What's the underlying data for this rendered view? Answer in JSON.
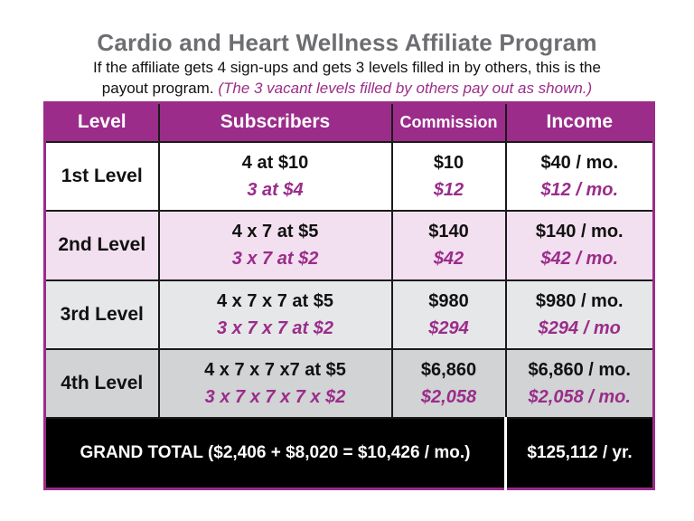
{
  "header": {
    "title": "Cardio and Heart Wellness Affiliate Program",
    "subtitle_line1": "If the affiliate gets 4 sign-ups and gets 3 levels filled in by others, this is the",
    "subtitle_line2": "payout program.",
    "subtitle_note": "(The 3 vacant levels filled by others pay out as shown.)"
  },
  "table": {
    "columns": [
      "Level",
      "Subscribers",
      "Commission",
      "Income"
    ],
    "rows": [
      {
        "level": "1st Level",
        "subscribers": "4 at $10",
        "subscribers_alt": "3 at $4",
        "commission": "$10",
        "commission_alt": "$12",
        "income": "$40 / mo.",
        "income_alt": "$12 / mo."
      },
      {
        "level": "2nd Level",
        "subscribers": "4 x 7 at $5",
        "subscribers_alt": "3 x 7 at $2",
        "commission": "$140",
        "commission_alt": "$42",
        "income": "$140 / mo.",
        "income_alt": "$42 / mo."
      },
      {
        "level": "3rd Level",
        "subscribers": "4 x 7 x 7 at $5",
        "subscribers_alt": "3 x 7 x 7 at $2",
        "commission": "$980",
        "commission_alt": "$294",
        "income": "$980 / mo.",
        "income_alt": "$294 / mo"
      },
      {
        "level": "4th Level",
        "subscribers": "4 x 7 x 7 x7 at $5",
        "subscribers_alt": "3 x 7 x 7 x 7 x $2",
        "commission": "$6,860",
        "commission_alt": "$2,058",
        "income": "$6,860 / mo.",
        "income_alt": "$2,058 / mo."
      }
    ],
    "grand_total": "GRAND TOTAL ($2,406 + $8,020 = $10,426 / mo.)",
    "yearly_total": "$125,112 / yr."
  },
  "colors": {
    "accent_purple": "#9b2c8a",
    "title_gray": "#6d6e71",
    "row2_pink": "#f2dfef",
    "row3_gray": "#e6e7e8",
    "row4_gray": "#d1d3d4"
  }
}
